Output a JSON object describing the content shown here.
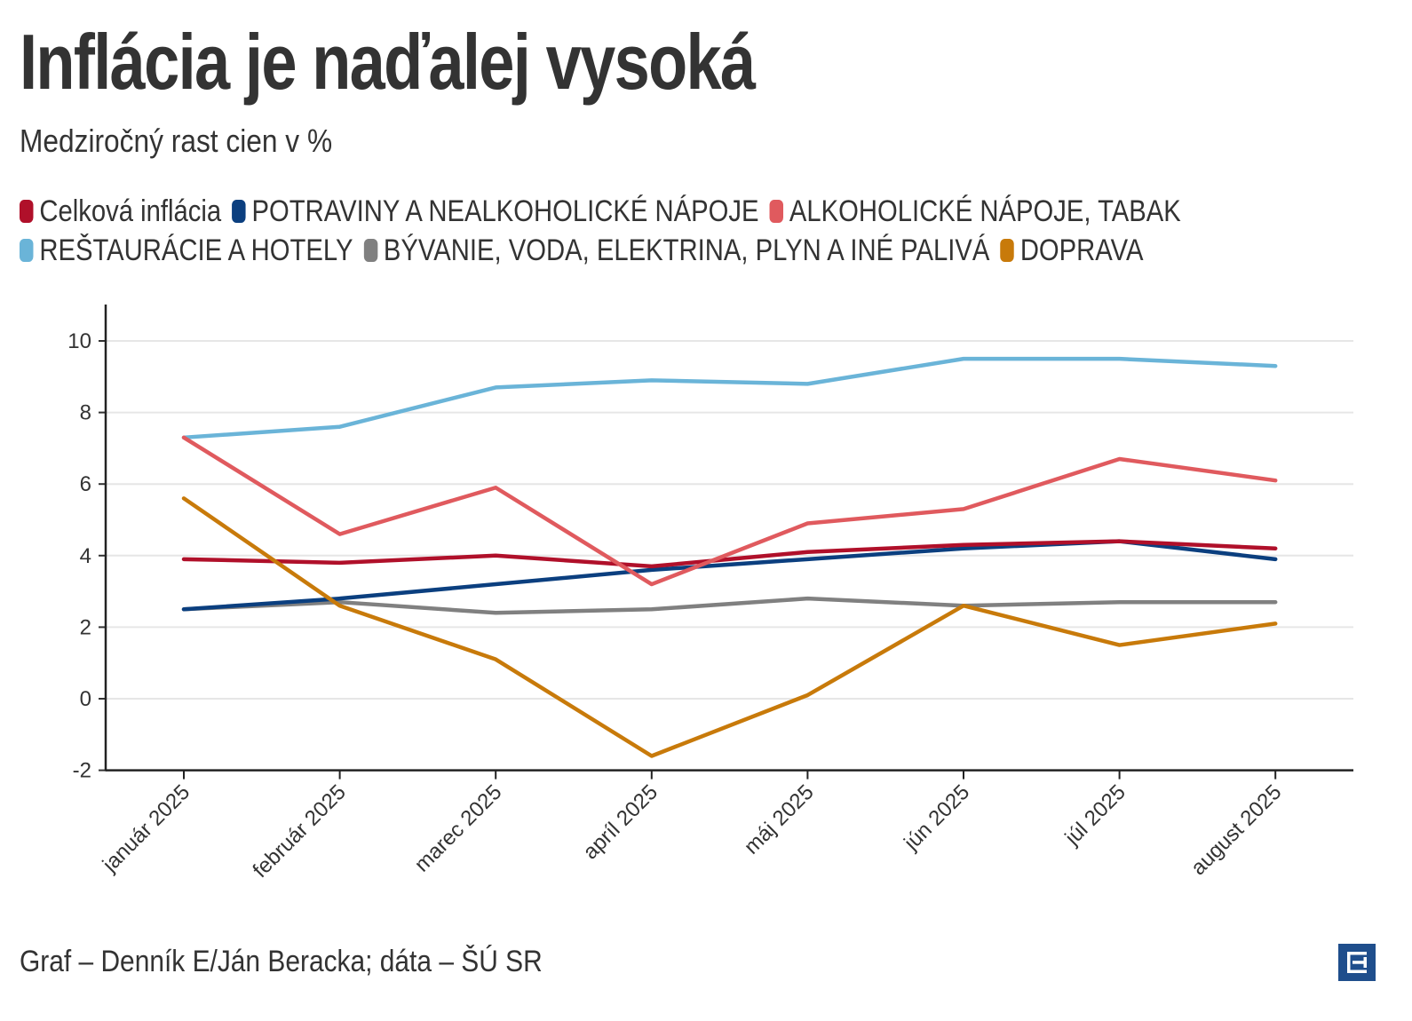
{
  "header": {
    "title": "Inflácia je naďalej vysoká",
    "subtitle": "Medziročný rast cien v %"
  },
  "footer": {
    "credit": "Graf – Denník E/Ján Beracka; dáta – ŠÚ SR",
    "logo_icon": "denník-e-logo-icon"
  },
  "legend_rows": [
    [
      0,
      1,
      2
    ],
    [
      3,
      4,
      5
    ]
  ],
  "chart_data": {
    "type": "line",
    "title": "Inflácia je naďalej vysoká",
    "subtitle": "Medziročný rast cien v %",
    "xlabel": "",
    "ylabel": "",
    "categories": [
      "január 2025",
      "február 2025",
      "marec 2025",
      "apríl 2025",
      "máj 2025",
      "jún 2025",
      "júl 2025",
      "august 2025"
    ],
    "ylim": [
      -2,
      11
    ],
    "yticks": [
      -2,
      0,
      2,
      4,
      6,
      8,
      10
    ],
    "grid": true,
    "legend_position": "top-left",
    "series": [
      {
        "name": "Celková inflácia",
        "color": "#b0102a",
        "values": [
          3.9,
          3.8,
          4.0,
          3.7,
          4.1,
          4.3,
          4.4,
          4.2
        ]
      },
      {
        "name": "POTRAVINY A NEALKOHOLICKÉ NÁPOJE",
        "color": "#0b3f7f",
        "values": [
          2.5,
          2.8,
          3.2,
          3.6,
          3.9,
          4.2,
          4.4,
          3.9
        ]
      },
      {
        "name": "ALKOHOLICKÉ NÁPOJE, TABAK",
        "color": "#e05a5e",
        "values": [
          7.3,
          4.6,
          5.9,
          3.2,
          4.9,
          5.3,
          6.7,
          6.1
        ]
      },
      {
        "name": "REŠTAURÁCIE A HOTELY",
        "color": "#6ab4d8",
        "values": [
          7.3,
          7.6,
          8.7,
          8.9,
          8.8,
          9.5,
          9.5,
          9.3
        ]
      },
      {
        "name": "BÝVANIE, VODA, ELEKTRINA, PLYN A INÉ PALIVÁ",
        "color": "#808080",
        "values": [
          2.5,
          2.7,
          2.4,
          2.5,
          2.8,
          2.6,
          2.7,
          2.7
        ]
      },
      {
        "name": "DOPRAVA",
        "color": "#c87a0a",
        "values": [
          5.6,
          2.6,
          1.1,
          -1.6,
          0.1,
          2.6,
          1.5,
          2.1
        ]
      }
    ]
  }
}
